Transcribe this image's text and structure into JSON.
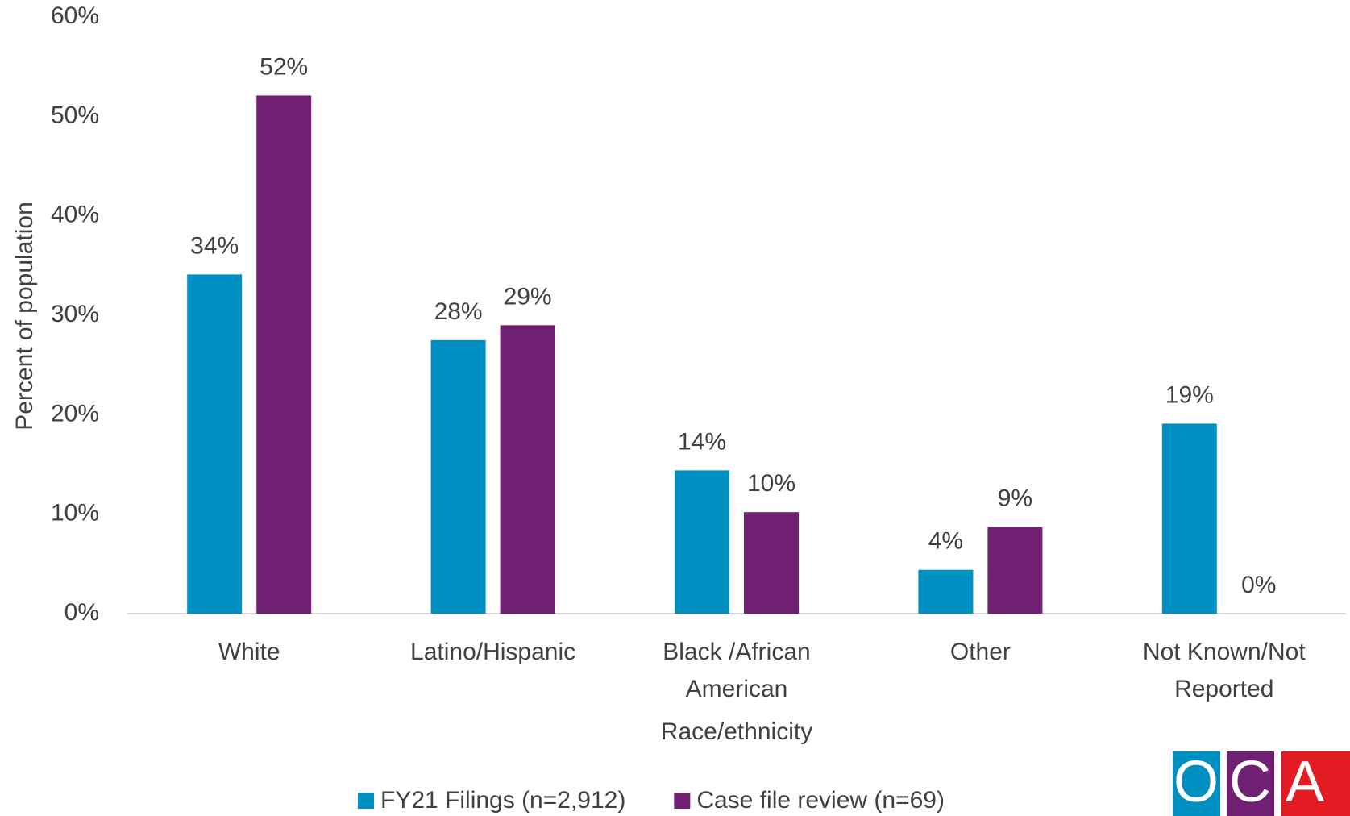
{
  "chart_data": {
    "type": "bar",
    "y_label": "Percent of population",
    "x_label": "Race/ethnicity",
    "categories": [
      "White",
      "Latino/Hispanic",
      "Black /African American",
      "Other",
      "Not Known/Not Reported"
    ],
    "series": [
      {
        "name": "FY21 Filings (n=2,912)",
        "color": "#008fc1",
        "values": [
          34.1,
          27.5,
          14.4,
          4.4,
          19.1
        ],
        "value_labels": [
          "34%",
          "28%",
          "14%",
          "4%",
          "19%"
        ]
      },
      {
        "name": "Case file review (n=69)",
        "color": "#702072",
        "values": [
          52.1,
          29.0,
          10.2,
          8.7,
          0
        ],
        "value_labels": [
          "52%",
          "29%",
          "10%",
          "9%",
          "0%"
        ]
      }
    ],
    "ylim": [
      0,
      60
    ],
    "yticks": [
      {
        "value": 0,
        "label": "0%"
      },
      {
        "value": 10,
        "label": "10%"
      },
      {
        "value": 20,
        "label": "20%"
      },
      {
        "value": 30,
        "label": "30%"
      },
      {
        "value": 40,
        "label": "40%"
      },
      {
        "value": 50,
        "label": "50%"
      },
      {
        "value": 60,
        "label": "60%"
      }
    ],
    "grid": false,
    "legend": "bottom"
  },
  "logo": {
    "letters": [
      "O",
      "C",
      "A"
    ],
    "colors": [
      "#008fc1",
      "#702072",
      "#e31b23"
    ]
  }
}
